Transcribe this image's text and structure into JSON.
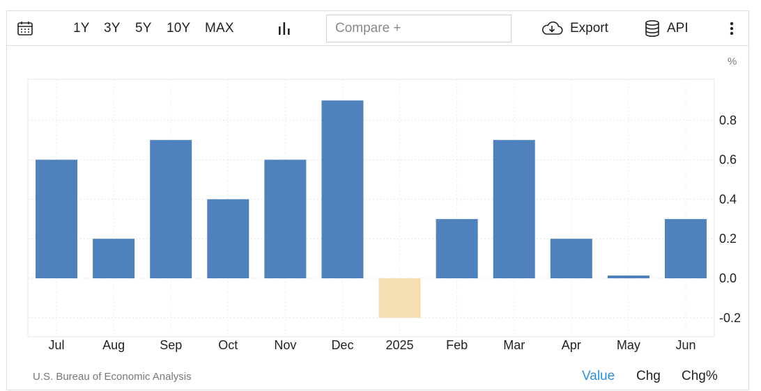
{
  "toolbar": {
    "calendar_icon": "calendar-icon",
    "ranges": [
      "1Y",
      "3Y",
      "5Y",
      "10Y",
      "MAX"
    ],
    "chart_type_icon": "bar-chart-icon",
    "compare_placeholder": "Compare +",
    "export_label": "Export",
    "api_label": "API",
    "more_icon": "more-vertical-icon"
  },
  "unit_label": "%",
  "source": "U.S. Bureau of Economic Analysis",
  "modes": [
    "Value",
    "Chg",
    "Chg%"
  ],
  "active_mode": "Value",
  "colors": {
    "positive_bar": "#4f81bd",
    "negative_bar": "#f5deb3",
    "active_mode": "#2d8fe0"
  },
  "chart_data": {
    "type": "bar",
    "categories": [
      "Jul",
      "Aug",
      "Sep",
      "Oct",
      "Nov",
      "Dec",
      "2025",
      "Feb",
      "Mar",
      "Apr",
      "May",
      "Jun"
    ],
    "values": [
      0.6,
      0.2,
      0.7,
      0.4,
      0.6,
      0.9,
      -0.2,
      0.3,
      0.7,
      0.2,
      0.01,
      0.3
    ],
    "yticks": [
      -0.2,
      0.0,
      0.2,
      0.4,
      0.6,
      0.8
    ],
    "ylim": [
      -0.3,
      1.0
    ],
    "y_axis_position": "right",
    "grid": true
  }
}
